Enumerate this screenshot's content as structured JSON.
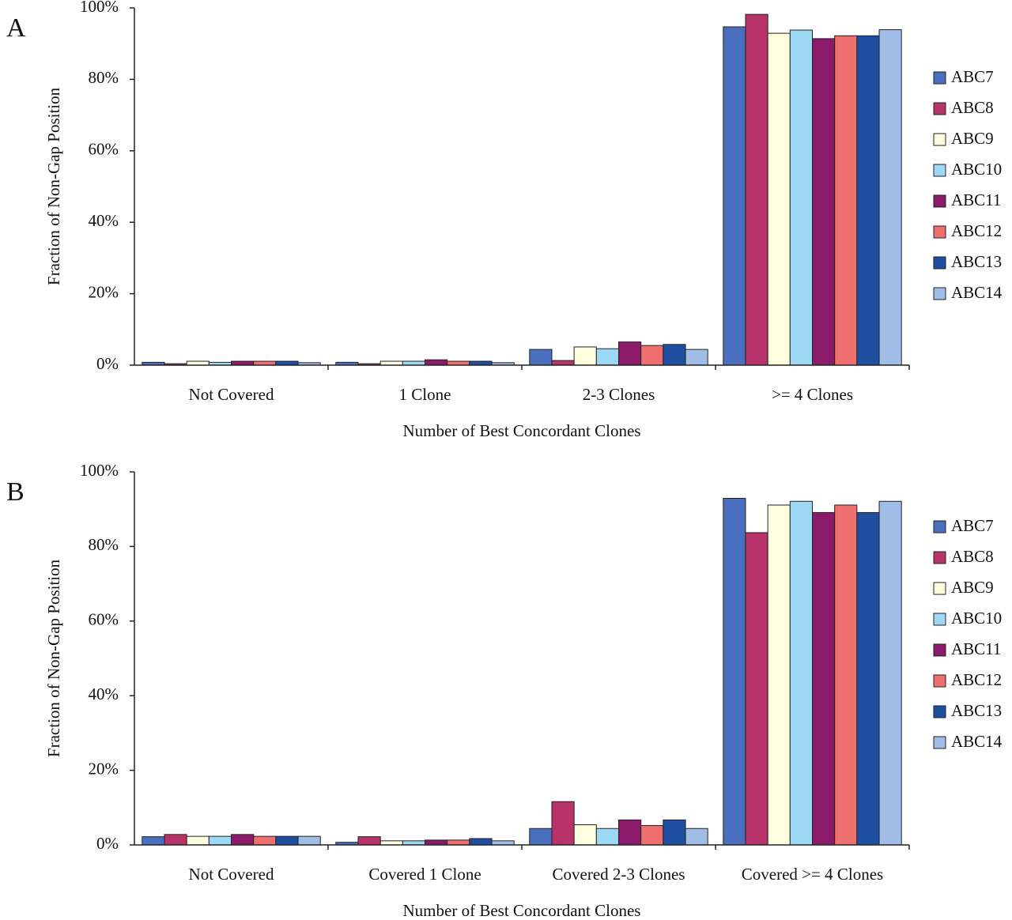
{
  "chart_data": [
    {
      "type": "bar",
      "panel": "A",
      "x_label": "Number of Best Concordant Clones",
      "y_label": "Fraction of Non-Gap Position",
      "categories": [
        "Not Covered",
        "1 Clone",
        "2-3 Clones",
        ">= 4 Clones"
      ],
      "ylim": [
        0,
        100
      ],
      "yticks": [
        {
          "value": 0,
          "label": "0%"
        },
        {
          "value": 20,
          "label": "20%"
        },
        {
          "value": 40,
          "label": "40%"
        },
        {
          "value": 60,
          "label": "60%"
        },
        {
          "value": 80,
          "label": "80%"
        },
        {
          "value": 100,
          "label": "100%"
        }
      ],
      "series": [
        {
          "name": "ABC7",
          "color": "#4a6fbf",
          "values": [
            0.8,
            0.8,
            4.4,
            94.7
          ]
        },
        {
          "name": "ABC8",
          "color": "#b8336a",
          "values": [
            0.4,
            0.4,
            1.3,
            98.2
          ]
        },
        {
          "name": "ABC9",
          "color": "#ffffe0",
          "values": [
            1.1,
            1.1,
            5.1,
            92.9
          ]
        },
        {
          "name": "ABC10",
          "color": "#9dd8f5",
          "values": [
            0.8,
            1.1,
            4.6,
            93.8
          ]
        },
        {
          "name": "ABC11",
          "color": "#8b1a6b",
          "values": [
            1.1,
            1.5,
            6.5,
            91.4
          ]
        },
        {
          "name": "ABC12",
          "color": "#ef6f6f",
          "values": [
            1.1,
            1.1,
            5.5,
            92.2
          ]
        },
        {
          "name": "ABC13",
          "color": "#1f4fa0",
          "values": [
            1.1,
            1.1,
            5.8,
            92.2
          ]
        },
        {
          "name": "ABC14",
          "color": "#9fbde6",
          "values": [
            0.7,
            0.7,
            4.4,
            93.9
          ]
        }
      ]
    },
    {
      "type": "bar",
      "panel": "B",
      "x_label": "Number of Best Concordant Clones",
      "y_label": "Fraction of Non-Gap Position",
      "categories": [
        "Not Covered",
        "Covered 1 Clone",
        "Covered 2-3 Clones",
        "Covered >= 4 Clones"
      ],
      "ylim": [
        0,
        100
      ],
      "yticks": [
        {
          "value": 0,
          "label": "0%"
        },
        {
          "value": 20,
          "label": "20%"
        },
        {
          "value": 40,
          "label": "40%"
        },
        {
          "value": 60,
          "label": "60%"
        },
        {
          "value": 80,
          "label": "80%"
        },
        {
          "value": 100,
          "label": "100%"
        }
      ],
      "series": [
        {
          "name": "ABC7",
          "color": "#4a6fbf",
          "values": [
            2.2,
            0.7,
            4.4,
            92.9
          ]
        },
        {
          "name": "ABC8",
          "color": "#b8336a",
          "values": [
            2.8,
            2.2,
            11.6,
            83.7
          ]
        },
        {
          "name": "ABC9",
          "color": "#ffffe0",
          "values": [
            2.3,
            1.1,
            5.4,
            91.1
          ]
        },
        {
          "name": "ABC10",
          "color": "#9dd8f5",
          "values": [
            2.3,
            1.1,
            4.4,
            92.1
          ]
        },
        {
          "name": "ABC11",
          "color": "#8b1a6b",
          "values": [
            2.8,
            1.3,
            6.7,
            89.1
          ]
        },
        {
          "name": "ABC12",
          "color": "#ef6f6f",
          "values": [
            2.3,
            1.3,
            5.2,
            91.1
          ]
        },
        {
          "name": "ABC13",
          "color": "#1f4fa0",
          "values": [
            2.3,
            1.7,
            6.7,
            89.1
          ]
        },
        {
          "name": "ABC14",
          "color": "#9fbde6",
          "values": [
            2.3,
            1.1,
            4.4,
            92.1
          ]
        }
      ]
    }
  ]
}
